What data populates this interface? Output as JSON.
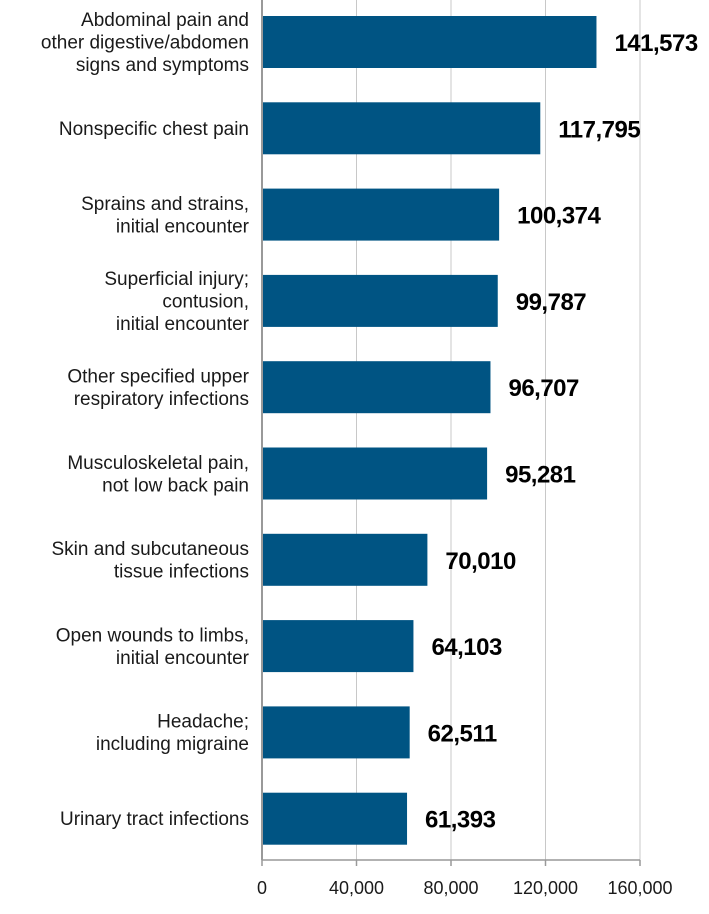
{
  "chart_data": {
    "type": "bar",
    "orientation": "horizontal",
    "categories": [
      "Abdominal pain and\nother digestive/abdomen\nsigns and symptoms",
      "Nonspecific chest pain",
      "Sprains and strains,\ninitial encounter",
      "Superficial injury;\ncontusion,\ninitial encounter",
      "Other specified upper\nrespiratory infections",
      "Musculoskeletal pain,\nnot low back pain",
      "Skin and subcutaneous\ntissue infections",
      "Open wounds to limbs,\ninitial encounter",
      "Headache;\nincluding migraine",
      "Urinary tract infections"
    ],
    "values": [
      141573,
      117795,
      100374,
      99787,
      96707,
      95281,
      70010,
      64103,
      62511,
      61393
    ],
    "value_labels": [
      "141,573",
      "117,795",
      "100,374",
      "99,787",
      "96,707",
      "95,281",
      "70,010",
      "64,103",
      "62,511",
      "61,393"
    ],
    "xlim": [
      0,
      160000
    ],
    "x_ticks": [
      0,
      40000,
      80000,
      120000,
      160000
    ],
    "x_tick_labels": [
      "0",
      "40,000",
      "80,000",
      "120,000",
      "160,000"
    ],
    "grid": true,
    "bar_color": "#005483",
    "grid_color": "#c8c8c8",
    "axis_color": "#999999"
  }
}
